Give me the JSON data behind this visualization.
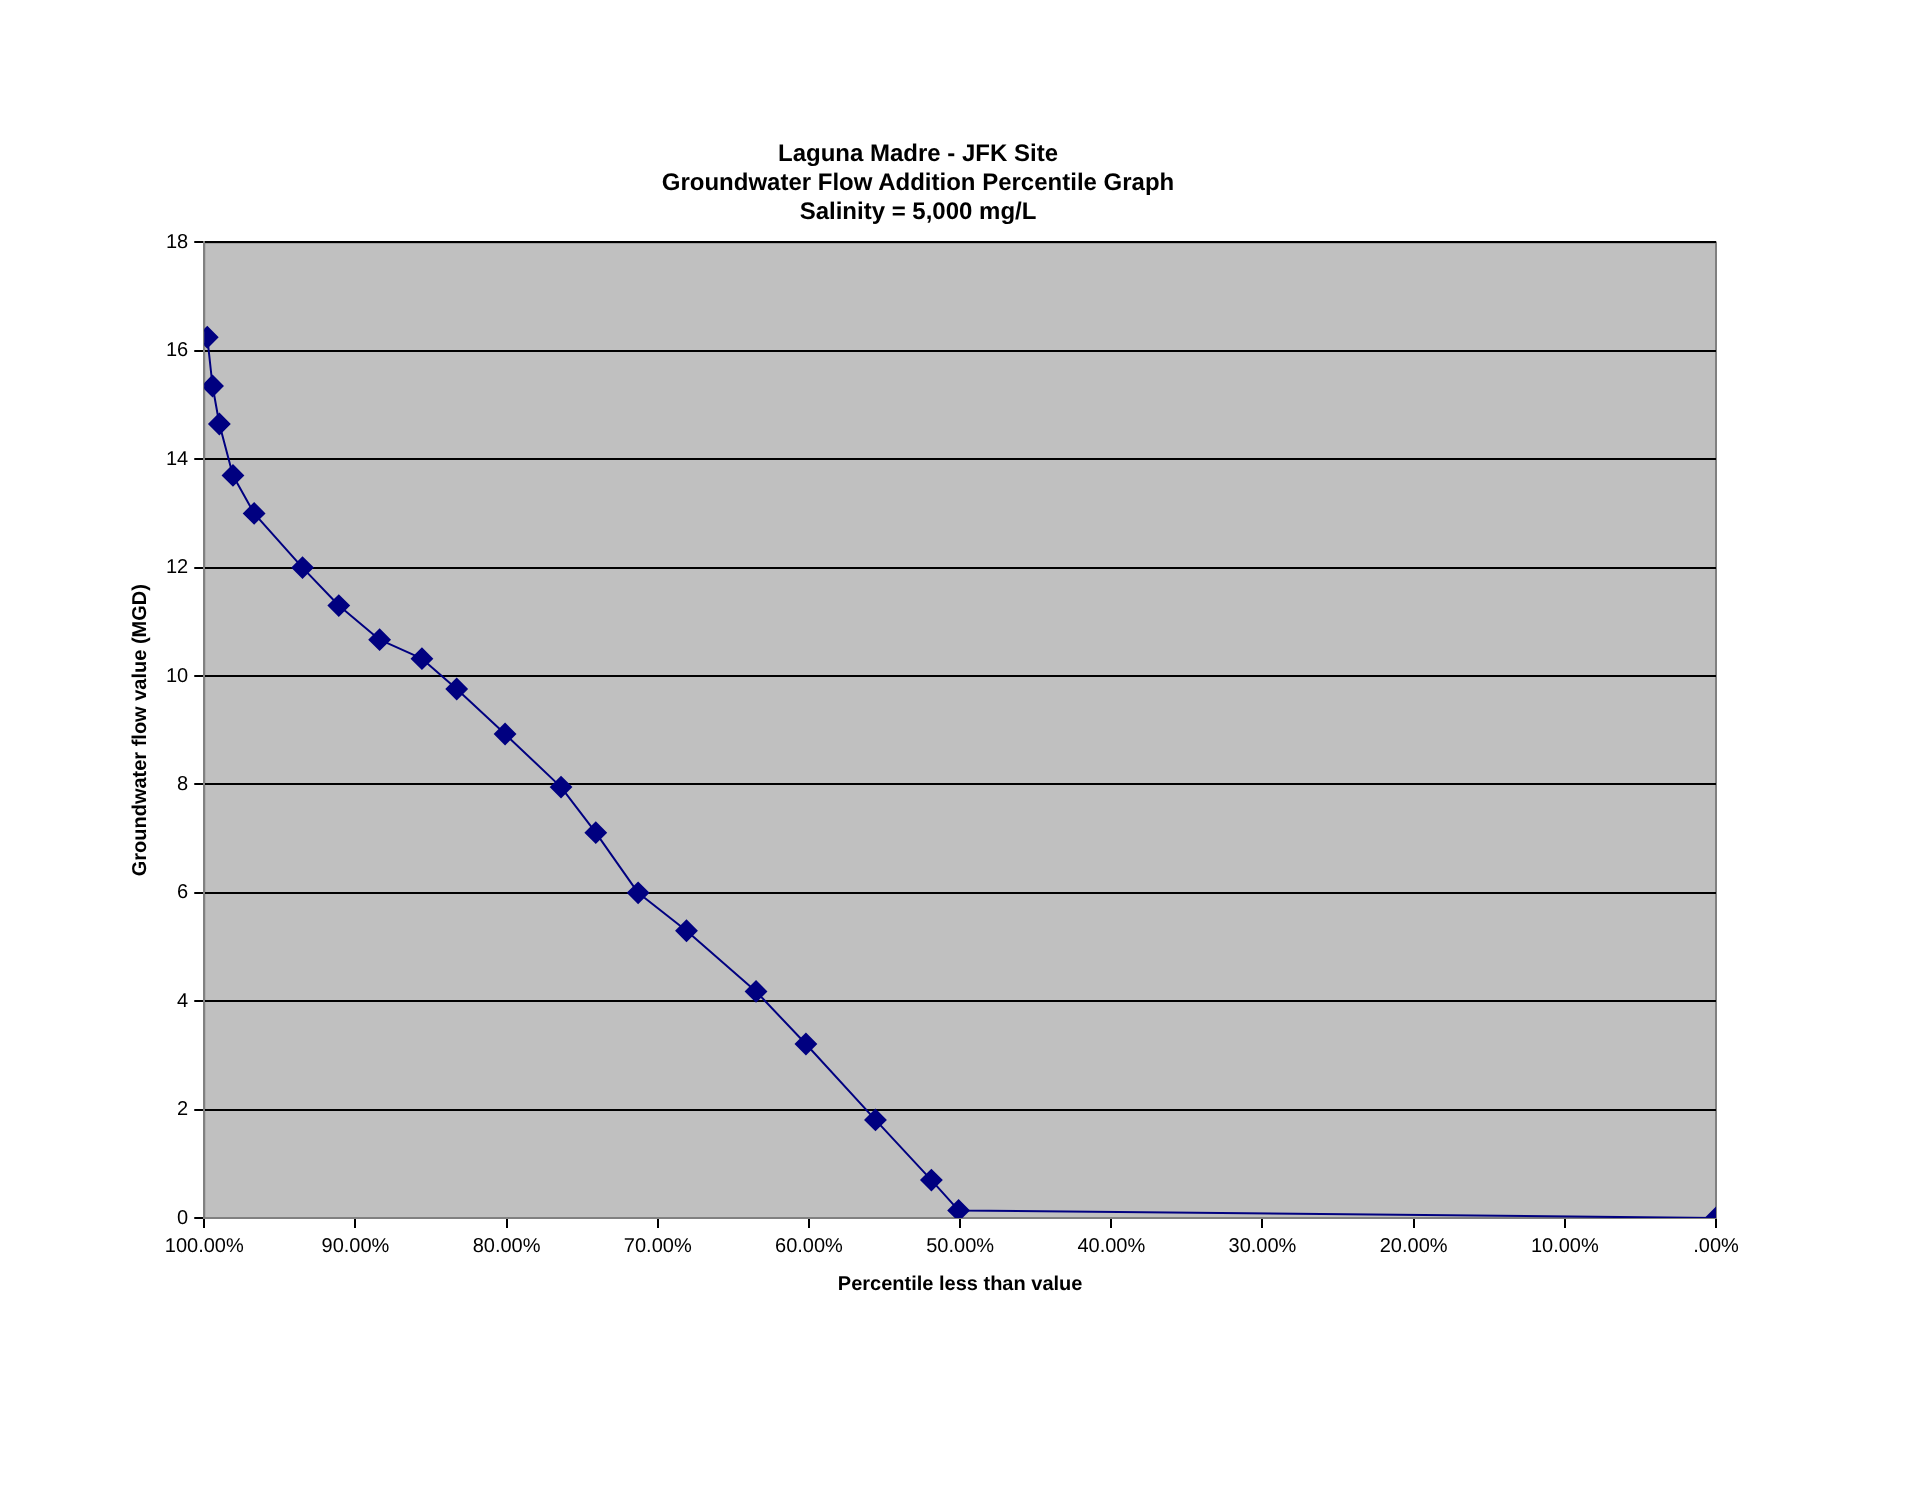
{
  "chart_data": {
    "type": "line",
    "title": "Laguna Madre - JFK Site\nGroundwater Flow Addition Percentile Graph\nSalinity = 5,000 mg/L",
    "xlabel": "Percentile less than value",
    "ylabel": "Groundwater flow value (MGD)",
    "x": [
      99.8,
      99.45,
      99.0,
      98.1,
      96.7,
      93.5,
      91.1,
      88.4,
      85.6,
      83.3,
      80.1,
      76.4,
      74.1,
      71.3,
      68.1,
      63.5,
      60.2,
      55.6,
      51.9,
      50.1,
      0
    ],
    "series": [
      {
        "color": "#000080",
        "values": [
          16.25,
          15.35,
          14.65,
          13.7,
          13.0,
          12.0,
          11.3,
          10.67,
          10.32,
          9.76,
          8.93,
          7.95,
          7.11,
          6.0,
          5.3,
          4.18,
          3.21,
          1.81,
          0.7,
          0.14,
          0
        ]
      }
    ],
    "xlim": [
      100,
      0
    ],
    "xticks": [
      {
        "value": 100,
        "label": "100.00%"
      },
      {
        "value": 90,
        "label": "90.00%"
      },
      {
        "value": 80,
        "label": "80.00%"
      },
      {
        "value": 70,
        "label": "70.00%"
      },
      {
        "value": 60,
        "label": "60.00%"
      },
      {
        "value": 50,
        "label": "50.00%"
      },
      {
        "value": 40,
        "label": "40.00%"
      },
      {
        "value": 30,
        "label": "30.00%"
      },
      {
        "value": 20,
        "label": "20.00%"
      },
      {
        "value": 10,
        "label": "10.00%"
      },
      {
        "value": 0,
        "label": ".00%"
      }
    ],
    "ylim": [
      0,
      18
    ],
    "yticks": [
      0,
      2,
      4,
      6,
      8,
      10,
      12,
      14,
      16,
      18
    ],
    "grid": "y",
    "legend": false,
    "marker": "diamond",
    "line_style": "solid"
  }
}
